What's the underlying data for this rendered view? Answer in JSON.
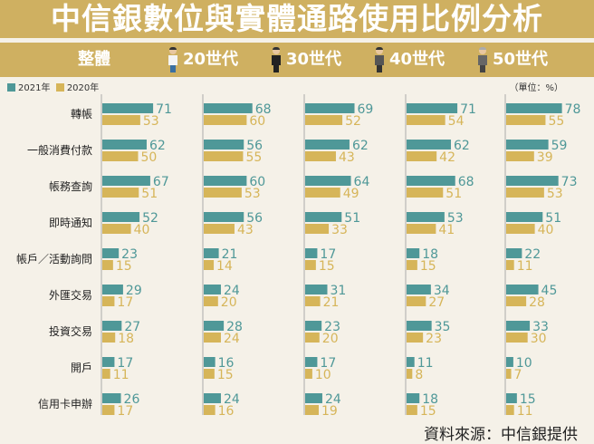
{
  "title": "中信銀數位與實體通路使用比例分析",
  "groups": [
    {
      "label": "整體",
      "icon": ""
    },
    {
      "num": "20",
      "suffix": "世代",
      "icon": "young-man-icon"
    },
    {
      "num": "30",
      "suffix": "世代",
      "icon": "man-suit-icon"
    },
    {
      "num": "40",
      "suffix": "世代",
      "icon": "bearded-man-icon"
    },
    {
      "num": "50",
      "suffix": "世代",
      "icon": "older-man-icon"
    }
  ],
  "legend": {
    "s2021": "2021年",
    "s2020": "2020年"
  },
  "unit": "（單位：%）",
  "source": "資料來源：中信銀提供",
  "colors": {
    "s2021": "#4f9898",
    "s2020": "#d6b559",
    "banner": "#cfb061"
  },
  "chart_data": {
    "type": "bar",
    "orientation": "horizontal",
    "panels": [
      "整體",
      "20世代",
      "30世代",
      "40世代",
      "50世代"
    ],
    "categories": [
      "轉帳",
      "一般消費付款",
      "帳務查詢",
      "即時通知",
      "帳戶／活動詢問",
      "外匯交易",
      "投資交易",
      "開戶",
      "信用卡申辦"
    ],
    "series": [
      {
        "name": "2021年",
        "values": [
          [
            71,
            62,
            67,
            52,
            23,
            29,
            27,
            17,
            26
          ],
          [
            68,
            56,
            60,
            56,
            21,
            24,
            28,
            16,
            24
          ],
          [
            69,
            62,
            64,
            51,
            17,
            31,
            23,
            17,
            24
          ],
          [
            71,
            62,
            68,
            53,
            18,
            34,
            35,
            11,
            18
          ],
          [
            78,
            59,
            73,
            51,
            22,
            45,
            33,
            10,
            15
          ]
        ]
      },
      {
        "name": "2020年",
        "values": [
          [
            53,
            50,
            51,
            40,
            15,
            17,
            18,
            11,
            17
          ],
          [
            60,
            55,
            53,
            43,
            14,
            20,
            24,
            15,
            16
          ],
          [
            52,
            43,
            49,
            33,
            15,
            21,
            20,
            10,
            19
          ],
          [
            54,
            42,
            51,
            41,
            15,
            27,
            23,
            8,
            15
          ],
          [
            55,
            39,
            53,
            40,
            11,
            28,
            30,
            7,
            11
          ]
        ]
      }
    ],
    "unit": "%"
  }
}
